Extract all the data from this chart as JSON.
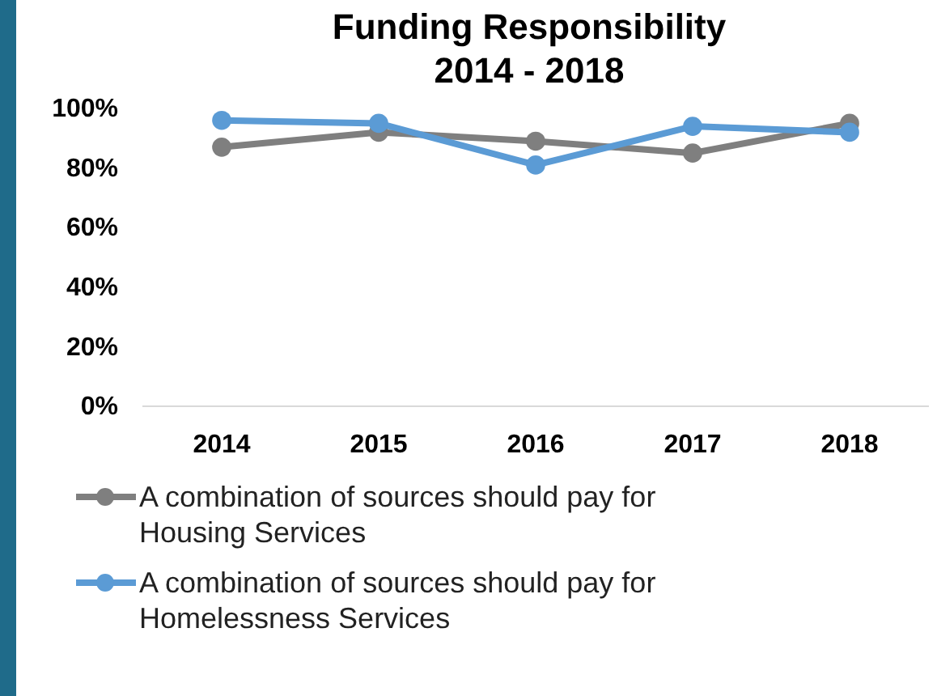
{
  "chart_data": {
    "type": "line",
    "title": "Funding Responsibility\n2014 - 2018",
    "categories": [
      "2014",
      "2015",
      "2016",
      "2017",
      "2018"
    ],
    "series": [
      {
        "name": "A combination of sources should pay for Housing Services",
        "color": "#7f7f7f",
        "values": [
          87,
          92,
          89,
          85,
          95
        ]
      },
      {
        "name": "A combination of sources should pay for Homelessness Services",
        "color": "#5b9bd5",
        "values": [
          96,
          95,
          81,
          94,
          92
        ]
      }
    ],
    "ylim": [
      0,
      100
    ],
    "yticks": [
      {
        "value": 0,
        "label": "0%"
      },
      {
        "value": 20,
        "label": "20%"
      },
      {
        "value": 40,
        "label": "40%"
      },
      {
        "value": 60,
        "label": "60%"
      },
      {
        "value": 80,
        "label": "80%"
      },
      {
        "value": 100,
        "label": "100%"
      }
    ],
    "grid": false,
    "legend": "bottom",
    "marker": "circle",
    "line_style": "solid"
  }
}
